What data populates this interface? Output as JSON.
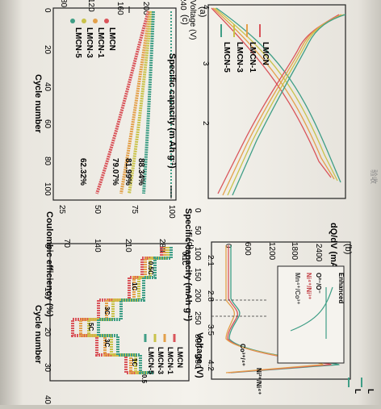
{
  "panel_a": {
    "letter": "(a)",
    "ylabel_cut": "Voltage (V)",
    "y_ticks": [
      "4",
      "3",
      "2"
    ],
    "x_ticks": [
      "0",
      "50",
      "100",
      "150",
      "200",
      "250",
      "300",
      "350"
    ],
    "xlabel": "Specific capacity (mAh g",
    "xlabel_sup": "-1",
    "xlabel_end": ")",
    "legend": [
      "LMCN",
      "LMCN-1",
      "LMCN-3",
      "LMCN-5"
    ]
  },
  "panel_c": {
    "letter": "(c)",
    "ce_ticks": [
      "25",
      "50",
      "75",
      "100"
    ],
    "ce_label": "Coulombic efficiency  (%)",
    "cap_ticks": [
      "80",
      "120",
      "160",
      "200",
      "240"
    ],
    "x_ticks": [
      "0",
      "20",
      "40",
      "60",
      "80",
      "100"
    ],
    "xlabel": "Cycle number",
    "legend": [
      "LMCN",
      "LMCN-1",
      "LMCN-3",
      "LMCN-5"
    ],
    "retention": [
      "62.32%",
      "79.07%",
      "81.99%",
      "88.34%"
    ]
  },
  "panel_b": {
    "letter": "(b)",
    "ylabel": "dQ/dV (mAh g",
    "ylabel_sup": "-1",
    "ylabel_mid": "V",
    "ylabel_sup2": "-1",
    "ylabel_end": ")",
    "y_ticks": [
      "0",
      "600",
      "1200",
      "1800",
      "2400"
    ],
    "x_ticks": [
      "2.1",
      "2.8",
      "3.5",
      "4.2"
    ],
    "xlabel": "Voltage (V)",
    "inset": {
      "title": "Enhanced",
      "lines": [
        "O²⁻/O⁻",
        "Ni⁴⁺/Ni³⁺",
        "Mn⁴⁺/Co³⁺"
      ]
    },
    "peak_label": "Ni²⁺/Ni⁴⁺",
    "co_label": "Co³⁺/⁴⁺",
    "legend_cut": [
      "L",
      "L"
    ]
  },
  "panel_d": {
    "letter": "(d)",
    "ylabel": "Specific capacity (m Ah g",
    "ylabel_sup": "-1",
    "ylabel_end": ")",
    "y_ticks": [
      "70",
      "140",
      "210",
      "280"
    ],
    "x_ticks": [
      "0",
      "10",
      "20",
      "30",
      "40"
    ],
    "xlabel": "Cycle number",
    "rates": [
      "0.1C",
      "0.5C",
      "1C",
      "3C",
      "5C",
      "3C",
      "1C",
      "0.5"
    ],
    "legend": [
      "LMCN",
      "LMCN-1",
      "LMCN-3",
      "LMCN-5"
    ]
  },
  "colors": {
    "LMCN": "#d9545a",
    "LMCN-1": "#e3a04a",
    "LMCN-3": "#c9c24a",
    "LMCN-5": "#3f9e86"
  },
  "margin_note": "验收"
}
